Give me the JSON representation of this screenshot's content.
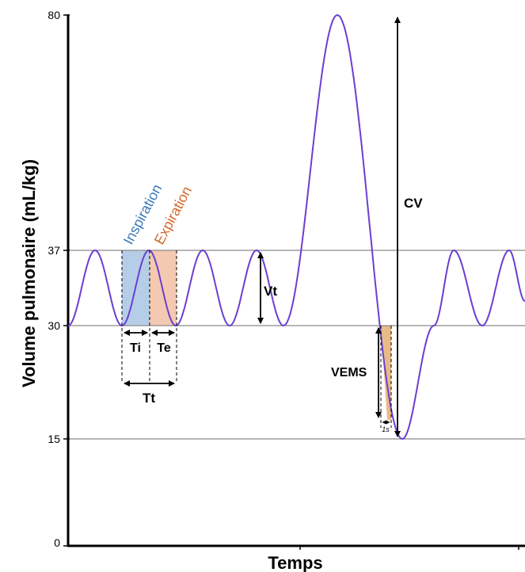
{
  "axes": {
    "ylabel": "Volume pulmonaire (mL/kg)",
    "xlabel": "Temps",
    "yticks": [
      0,
      15,
      30,
      37,
      80
    ],
    "xticks": 2
  },
  "labels": {
    "inspiration": "Inspiration",
    "expiration": "Expiration",
    "ti": "Ti",
    "te": "Te",
    "tt": "Tt",
    "vt": "Vt",
    "cv": "CV",
    "vems": "VEMS",
    "one_s": "1s"
  },
  "colors": {
    "curve": "#6a3fd0",
    "inspiration": "#3d7ab8",
    "inspiration_fill": "#a9c4e4",
    "expiration": "#d2692e",
    "expiration_fill": "#f2bfa3",
    "vems_fill": "#e6b37a",
    "gridline": "#8a8a8a",
    "axis": "#000000"
  }
}
